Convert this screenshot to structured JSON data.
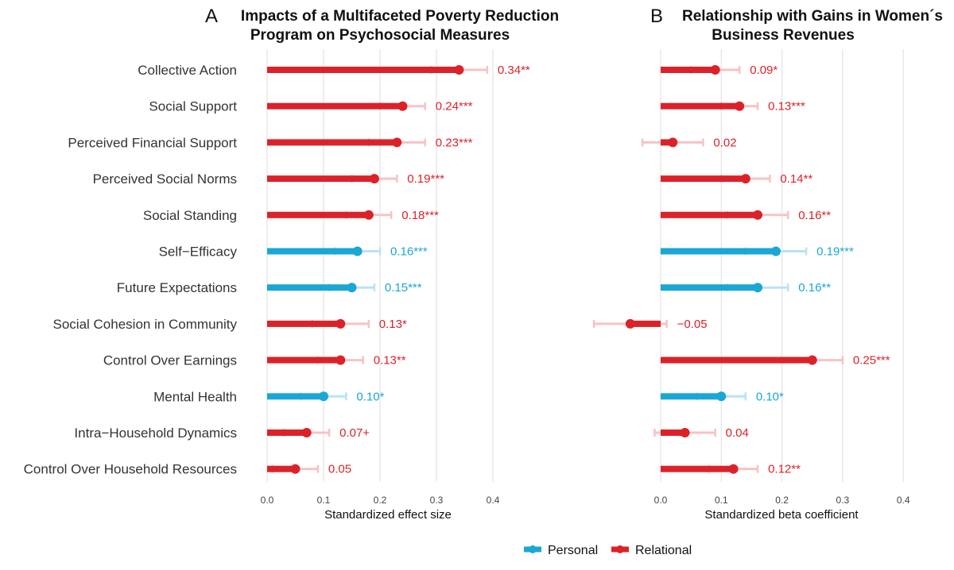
{
  "panels": [
    {
      "letter": "A",
      "title_lines": [
        "Impacts of a Multifaceted Poverty Reduction",
        "Program on Psychosocial Measures"
      ],
      "xlabel": "Standardized effect size"
    },
    {
      "letter": "B",
      "title_lines": [
        "Relationship with Gains in Women´s",
        "Business Revenues"
      ],
      "xlabel": "Standardized beta coefficient"
    }
  ],
  "legend": {
    "items": [
      {
        "label": "Personal",
        "color": "#1aa7d4"
      },
      {
        "label": "Relational",
        "color": "#dc2228"
      }
    ]
  },
  "chart_data": [
    {
      "type": "bar",
      "title": "Impacts of a Multifaceted Poverty Reduction Program on Psychosocial Measures",
      "xlabel": "Standardized effect size",
      "xlim": [
        0.0,
        0.4
      ],
      "ticks": [
        0.0,
        0.1,
        0.2,
        0.3,
        0.4
      ],
      "tick_labels": [
        "0.0",
        "0.1",
        "0.2",
        "0.3",
        "0.4"
      ],
      "categories": [
        "Collective Action",
        "Social Support",
        "Perceived Financial Support",
        "Perceived Social Norms",
        "Social Standing",
        "Self−Efficacy",
        "Future Expectations",
        "Social Cohesion in Community",
        "Control Over Earnings",
        "Mental Health",
        "Intra−Household Dynamics",
        "Control Over Household Resources"
      ],
      "group": [
        "Relational",
        "Relational",
        "Relational",
        "Relational",
        "Relational",
        "Personal",
        "Personal",
        "Relational",
        "Relational",
        "Personal",
        "Relational",
        "Relational"
      ],
      "values": [
        0.34,
        0.24,
        0.23,
        0.19,
        0.18,
        0.16,
        0.15,
        0.13,
        0.13,
        0.1,
        0.07,
        0.05
      ],
      "ci_low": [
        0.29,
        0.2,
        0.18,
        0.15,
        0.14,
        0.12,
        0.11,
        0.08,
        0.09,
        0.06,
        0.03,
        0.01
      ],
      "ci_high": [
        0.39,
        0.28,
        0.28,
        0.23,
        0.22,
        0.2,
        0.19,
        0.18,
        0.17,
        0.14,
        0.11,
        0.09
      ],
      "labels": [
        "0.34**",
        "0.24***",
        "0.23***",
        "0.19***",
        "0.18***",
        "0.16***",
        "0.15***",
        "0.13*",
        "0.13**",
        "0.10*",
        "0.07+",
        "0.05"
      ],
      "grid": true
    },
    {
      "type": "bar",
      "title": "Relationship with Gains in Women´s Business Revenues",
      "xlabel": "Standardized beta coefficient",
      "xlim": [
        -0.1,
        0.4
      ],
      "ticks": [
        0.0,
        0.1,
        0.2,
        0.3,
        0.4
      ],
      "tick_labels": [
        "0.0",
        "0.1",
        "0.2",
        "0.3",
        "0.4"
      ],
      "categories": [
        "Collective Action",
        "Social Support",
        "Perceived Financial Support",
        "Perceived Social Norms",
        "Social Standing",
        "Self−Efficacy",
        "Future Expectations",
        "Social Cohesion in Community",
        "Control Over Earnings",
        "Mental Health",
        "Intra−Household Dynamics",
        "Control Over Household Resources"
      ],
      "group": [
        "Relational",
        "Relational",
        "Relational",
        "Relational",
        "Relational",
        "Personal",
        "Personal",
        "Relational",
        "Relational",
        "Personal",
        "Relational",
        "Relational"
      ],
      "values": [
        0.09,
        0.13,
        0.02,
        0.14,
        0.16,
        0.19,
        0.16,
        -0.05,
        0.25,
        0.1,
        0.04,
        0.12
      ],
      "ci_low": [
        0.05,
        0.1,
        -0.03,
        0.1,
        0.11,
        0.14,
        0.11,
        -0.11,
        0.2,
        0.06,
        -0.01,
        0.08
      ],
      "ci_high": [
        0.13,
        0.16,
        0.07,
        0.18,
        0.21,
        0.24,
        0.21,
        0.01,
        0.3,
        0.14,
        0.09,
        0.16
      ],
      "labels": [
        "0.09*",
        "0.13***",
        "0.02",
        "0.14**",
        "0.16**",
        "0.19***",
        "0.16**",
        "−0.05",
        "0.25***",
        "0.10*",
        "0.04",
        "0.12**"
      ],
      "grid": true
    }
  ]
}
